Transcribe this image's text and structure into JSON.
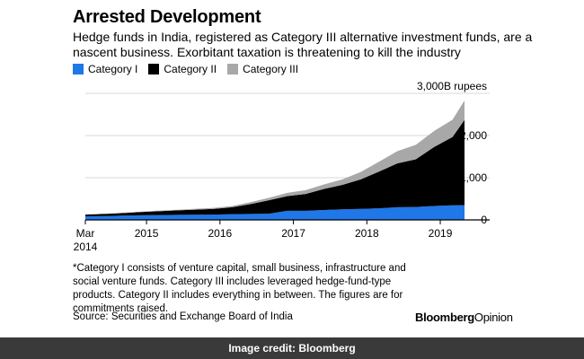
{
  "title": "Arrested Development",
  "subtitle": "Hedge funds in India, registered as Category III alternative investment funds, are a nascent business. Exorbitant taxation is threatening to kill the industry",
  "footnote": "*Category I consists of venture capital, small business, infrastructure and social venture funds. Category III includes leveraged hedge-fund-type products. Category II includes everything in between. The figures are for commitments raised.",
  "source": "Source: Securities and Exchange Board of India",
  "brand": {
    "bold": "Bloomberg",
    "light": "Opinion"
  },
  "credit": "Image credit: Bloomberg",
  "colors": {
    "cat1": "#1f77e8",
    "cat2": "#000000",
    "cat3": "#a8a8a8",
    "axis": "#000000",
    "grid": "#d9d9d9"
  },
  "chart_data": {
    "type": "area",
    "stacked": true,
    "title": "Arrested Development",
    "ylabel": "",
    "yunit_label": "3,000B rupees",
    "ylim": [
      0,
      3000
    ],
    "yticks": [
      0,
      1000,
      2000,
      3000
    ],
    "ytick_labels": [
      "0",
      "1,000",
      "2,000",
      "3,000B rupees"
    ],
    "xlim": [
      2014.167,
      2019.33
    ],
    "xticks": [
      2014.167,
      2015,
      2016,
      2017,
      2018,
      2019
    ],
    "xtick_labels": [
      "Mar\n2014",
      "2015",
      "2016",
      "2017",
      "2018",
      "2019"
    ],
    "legend": [
      "Category I",
      "Category II",
      "Category III"
    ],
    "legend_position": "top-left",
    "x": [
      2014.167,
      2014.417,
      2014.667,
      2014.917,
      2015.167,
      2015.417,
      2015.667,
      2015.917,
      2016.167,
      2016.417,
      2016.667,
      2016.917,
      2017.167,
      2017.417,
      2017.667,
      2017.917,
      2018.167,
      2018.417,
      2018.667,
      2018.917,
      2019.167,
      2019.33
    ],
    "series": [
      {
        "name": "Category I",
        "values": [
          85,
          90,
          100,
          110,
          115,
          120,
          122,
          125,
          135,
          140,
          145,
          215,
          215,
          235,
          250,
          260,
          275,
          300,
          305,
          330,
          345,
          350
        ]
      },
      {
        "name": "Category II",
        "values": [
          40,
          50,
          60,
          75,
          90,
          105,
          120,
          135,
          165,
          235,
          320,
          350,
          400,
          500,
          580,
          700,
          870,
          1040,
          1130,
          1400,
          1620,
          2020
        ]
      },
      {
        "name": "Category III",
        "values": [
          5,
          5,
          10,
          10,
          15,
          15,
          20,
          25,
          30,
          45,
          60,
          75,
          90,
          105,
          130,
          175,
          235,
          290,
          345,
          380,
          410,
          460
        ]
      }
    ]
  }
}
